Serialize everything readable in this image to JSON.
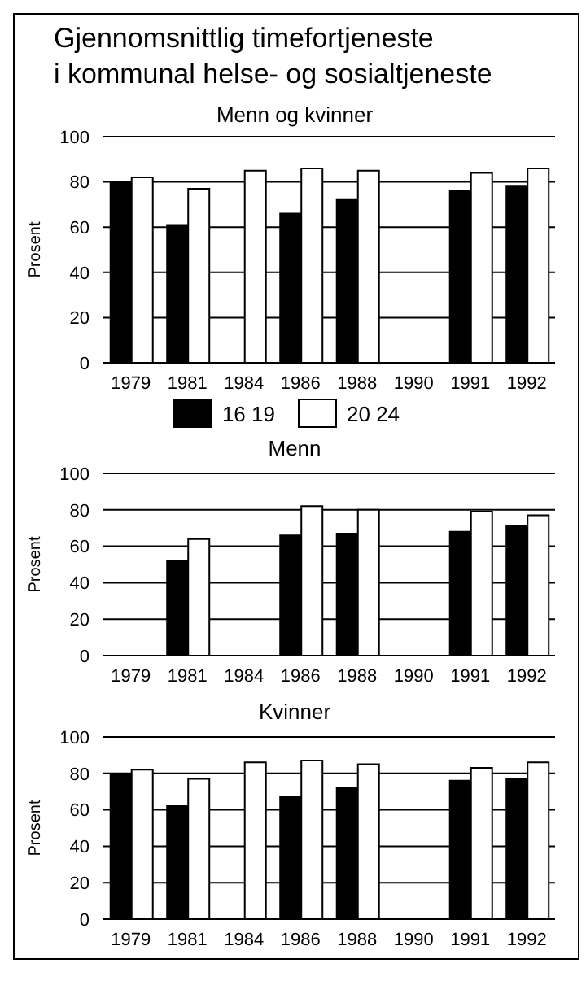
{
  "chart_data": [
    {
      "type": "bar",
      "title": "Gjennomsnittlig timefortjeneste\ni kommunal helse- og sosialtjeneste",
      "subtitle": "Menn og kvinner",
      "ylabel": "Prosent",
      "categories": [
        "1979",
        "1981",
        "1984",
        "1986",
        "1988",
        "1990",
        "1991",
        "1992"
      ],
      "series": [
        {
          "name": "16 19",
          "color": "#000000",
          "values": [
            80,
            61,
            null,
            66,
            72,
            null,
            76,
            78
          ]
        },
        {
          "name": "20 24",
          "color": "#ffffff",
          "values": [
            82,
            77,
            85,
            86,
            85,
            null,
            84,
            86
          ]
        }
      ],
      "ylim": [
        0,
        100
      ],
      "yticks": [
        0,
        20,
        40,
        60,
        80,
        100
      ],
      "grid": "y",
      "legend": "bottom"
    },
    {
      "type": "bar",
      "title": "Menn",
      "ylabel": "Prosent",
      "categories": [
        "1979",
        "1981",
        "1984",
        "1986",
        "1988",
        "1990",
        "1991",
        "1992"
      ],
      "series": [
        {
          "color": "#000000",
          "values": [
            null,
            52,
            null,
            66,
            67,
            null,
            68,
            71
          ]
        },
        {
          "color": "#ffffff",
          "values": [
            null,
            64,
            null,
            82,
            80,
            null,
            79,
            77
          ]
        }
      ],
      "ylim": [
        0,
        100
      ],
      "yticks": [
        0,
        20,
        40,
        60,
        80,
        100
      ],
      "grid": "y"
    },
    {
      "type": "bar",
      "title": "Kvinner",
      "ylabel": "Prosent",
      "categories": [
        "1979",
        "1981",
        "1984",
        "1986",
        "1988",
        "1990",
        "1991",
        "1992"
      ],
      "series": [
        {
          "color": "#000000",
          "values": [
            79,
            62,
            null,
            67,
            72,
            null,
            76,
            77
          ]
        },
        {
          "color": "#ffffff",
          "values": [
            82,
            77,
            86,
            87,
            85,
            null,
            83,
            86
          ]
        }
      ],
      "ylim": [
        0,
        100
      ],
      "yticks": [
        0,
        20,
        40,
        60,
        80,
        100
      ],
      "grid": "y"
    }
  ]
}
